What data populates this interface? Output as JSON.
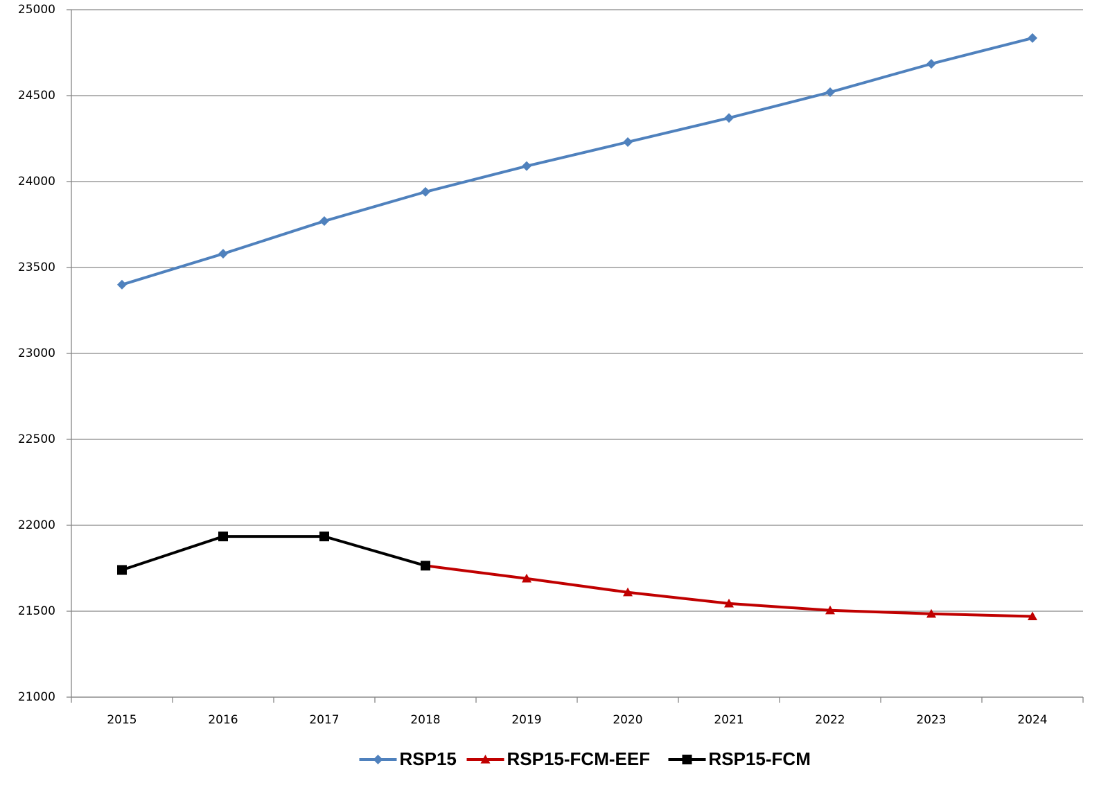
{
  "chart_data": {
    "type": "line",
    "categories": [
      "2015",
      "2016",
      "2017",
      "2018",
      "2019",
      "2020",
      "2021",
      "2022",
      "2023",
      "2024"
    ],
    "series": [
      {
        "name": "RSP15",
        "color": "#4f81bd",
        "marker": "diamond",
        "values": [
          23400,
          23580,
          23770,
          23940,
          24090,
          24230,
          24370,
          24520,
          24685,
          24835
        ]
      },
      {
        "name": "RSP15-FCM-EEF",
        "color": "#c00000",
        "marker": "triangle",
        "values": [
          null,
          null,
          null,
          21765,
          21690,
          21610,
          21545,
          21505,
          21485,
          21470
        ]
      },
      {
        "name": "RSP15-FCM",
        "color": "#000000",
        "marker": "square",
        "values": [
          21740,
          21935,
          21935,
          21765,
          null,
          null,
          null,
          null,
          null,
          null
        ]
      }
    ],
    "ylim": [
      21000,
      25000
    ],
    "yticks": [
      21000,
      21500,
      22000,
      22500,
      23000,
      23500,
      24000,
      24500,
      25000
    ],
    "grid": true,
    "legend": "bottom"
  }
}
